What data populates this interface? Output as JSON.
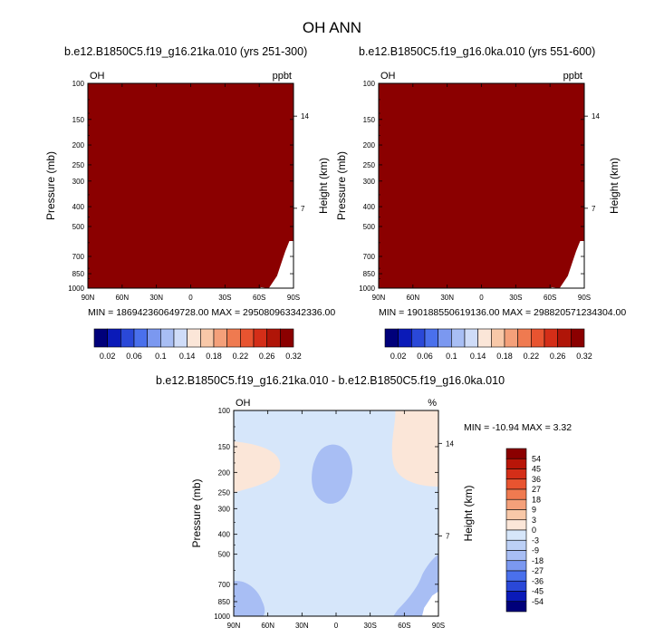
{
  "main_title": "OH ANN",
  "chart_data": [
    {
      "type": "heatmap",
      "title": "b.e12.B1850C5.f19_g16.21ka.010 (yrs 251-300)",
      "left_string": "OH",
      "right_string": "ppbt",
      "xlabel": "",
      "ylabel": "Pressure (mb)",
      "ylabel_right": "Height (km)",
      "x_ticks": [
        "90N",
        "60N",
        "30N",
        "0",
        "30S",
        "60S",
        "90S"
      ],
      "y_ticks": [
        "100",
        "150",
        "200",
        "250",
        "300",
        "400",
        "500",
        "700",
        "850",
        "1000"
      ],
      "y_right_ticks": [
        "14",
        "7"
      ],
      "ylim": [
        1000,
        100
      ],
      "y_scale": "log",
      "min_text": "MIN = 186942360649728.00",
      "max_text": "MAX = 295080963342336.00",
      "fill": "#8b0000",
      "colorbar": {
        "orientation": "horizontal",
        "labels": [
          "0.02",
          "0.06",
          "0.1",
          "0.14",
          "0.18",
          "0.22",
          "0.26",
          "0.32"
        ],
        "colors": [
          "#00007a",
          "#0a1ab8",
          "#2a48d8",
          "#4a70ec",
          "#7b98f0",
          "#a8bef4",
          "#cfdcf8",
          "#fbe6d8",
          "#f8c8a8",
          "#f4a07a",
          "#ef7a50",
          "#e85430",
          "#d42e18",
          "#b01508",
          "#8b0000"
        ]
      }
    },
    {
      "type": "heatmap",
      "title": "b.e12.B1850C5.f19_g16.0ka.010 (yrs 551-600)",
      "left_string": "OH",
      "right_string": "ppbt",
      "xlabel": "",
      "ylabel": "Pressure (mb)",
      "ylabel_right": "Height (km)",
      "x_ticks": [
        "90N",
        "60N",
        "30N",
        "0",
        "30S",
        "60S",
        "90S"
      ],
      "y_ticks": [
        "100",
        "150",
        "200",
        "250",
        "300",
        "400",
        "500",
        "700",
        "850",
        "1000"
      ],
      "y_right_ticks": [
        "14",
        "7"
      ],
      "ylim": [
        1000,
        100
      ],
      "y_scale": "log",
      "min_text": "MIN = 190188550619136.00",
      "max_text": "MAX = 298820571234304.00",
      "fill": "#8b0000",
      "colorbar": {
        "orientation": "horizontal",
        "labels": [
          "0.02",
          "0.06",
          "0.1",
          "0.14",
          "0.18",
          "0.22",
          "0.26",
          "0.32"
        ],
        "colors": [
          "#00007a",
          "#0a1ab8",
          "#2a48d8",
          "#4a70ec",
          "#7b98f0",
          "#a8bef4",
          "#cfdcf8",
          "#fbe6d8",
          "#f8c8a8",
          "#f4a07a",
          "#ef7a50",
          "#e85430",
          "#d42e18",
          "#b01508",
          "#8b0000"
        ]
      }
    },
    {
      "type": "heatmap",
      "title": "b.e12.B1850C5.f19_g16.21ka.010 - b.e12.B1850C5.f19_g16.0ka.010",
      "left_string": "OH",
      "right_string": "%",
      "xlabel": "",
      "ylabel": "Pressure (mb)",
      "ylabel_right": "Height (km)",
      "x_ticks": [
        "90N",
        "60N",
        "30N",
        "0",
        "30S",
        "60S",
        "90S"
      ],
      "y_ticks": [
        "100",
        "150",
        "200",
        "250",
        "300",
        "400",
        "500",
        "700",
        "850",
        "1000"
      ],
      "y_right_ticks": [
        "14",
        "7"
      ],
      "ylim": [
        1000,
        100
      ],
      "y_scale": "log",
      "min_text": "MIN = -10.94",
      "max_text": "MAX =   3.32",
      "fill": "#d6e6fa",
      "colorbar": {
        "orientation": "vertical",
        "labels": [
          "54",
          "45",
          "36",
          "27",
          "18",
          "9",
          "3",
          "0",
          "-3",
          "-9",
          "-18",
          "-27",
          "-36",
          "-45",
          "-54"
        ],
        "colors": [
          "#8b0000",
          "#b81508",
          "#d42e18",
          "#e85430",
          "#ef7a50",
          "#f4a07a",
          "#f8c8a8",
          "#fbe6d8",
          "#d6e6fa",
          "#bcd0f6",
          "#a8bef4",
          "#7b98f0",
          "#4a70ec",
          "#2a48d8",
          "#0a1ab8",
          "#00007a"
        ]
      }
    }
  ]
}
